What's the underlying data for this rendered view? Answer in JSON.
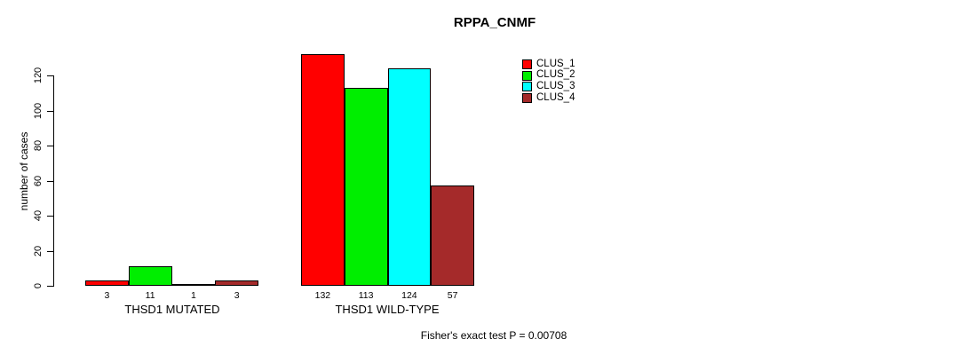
{
  "chart_data": {
    "type": "bar",
    "title": "RPPA_CNMF",
    "xlabel": "",
    "ylabel": "number of cases",
    "ylim": [
      0,
      120
    ],
    "yticks": [
      0,
      20,
      40,
      60,
      80,
      100,
      120
    ],
    "grid": false,
    "legend_position": "top-right",
    "categories": [
      "THSD1 MUTATED",
      "THSD1 WILD-TYPE"
    ],
    "series": [
      {
        "name": "CLUS_1",
        "color": "#ff0000",
        "values": [
          3,
          132
        ]
      },
      {
        "name": "CLUS_2",
        "color": "#00ee00",
        "values": [
          11,
          113
        ]
      },
      {
        "name": "CLUS_3",
        "color": "#00ffff",
        "values": [
          1,
          124
        ]
      },
      {
        "name": "CLUS_4",
        "color": "#a52a2a",
        "values": [
          3,
          57
        ]
      }
    ],
    "bar_value_labels": [
      [
        "3",
        "132"
      ],
      [
        "11",
        "113"
      ],
      [
        "1",
        "124"
      ],
      [
        "3",
        "57"
      ]
    ],
    "annotation": "Fisher's exact test P = 0.00708"
  }
}
